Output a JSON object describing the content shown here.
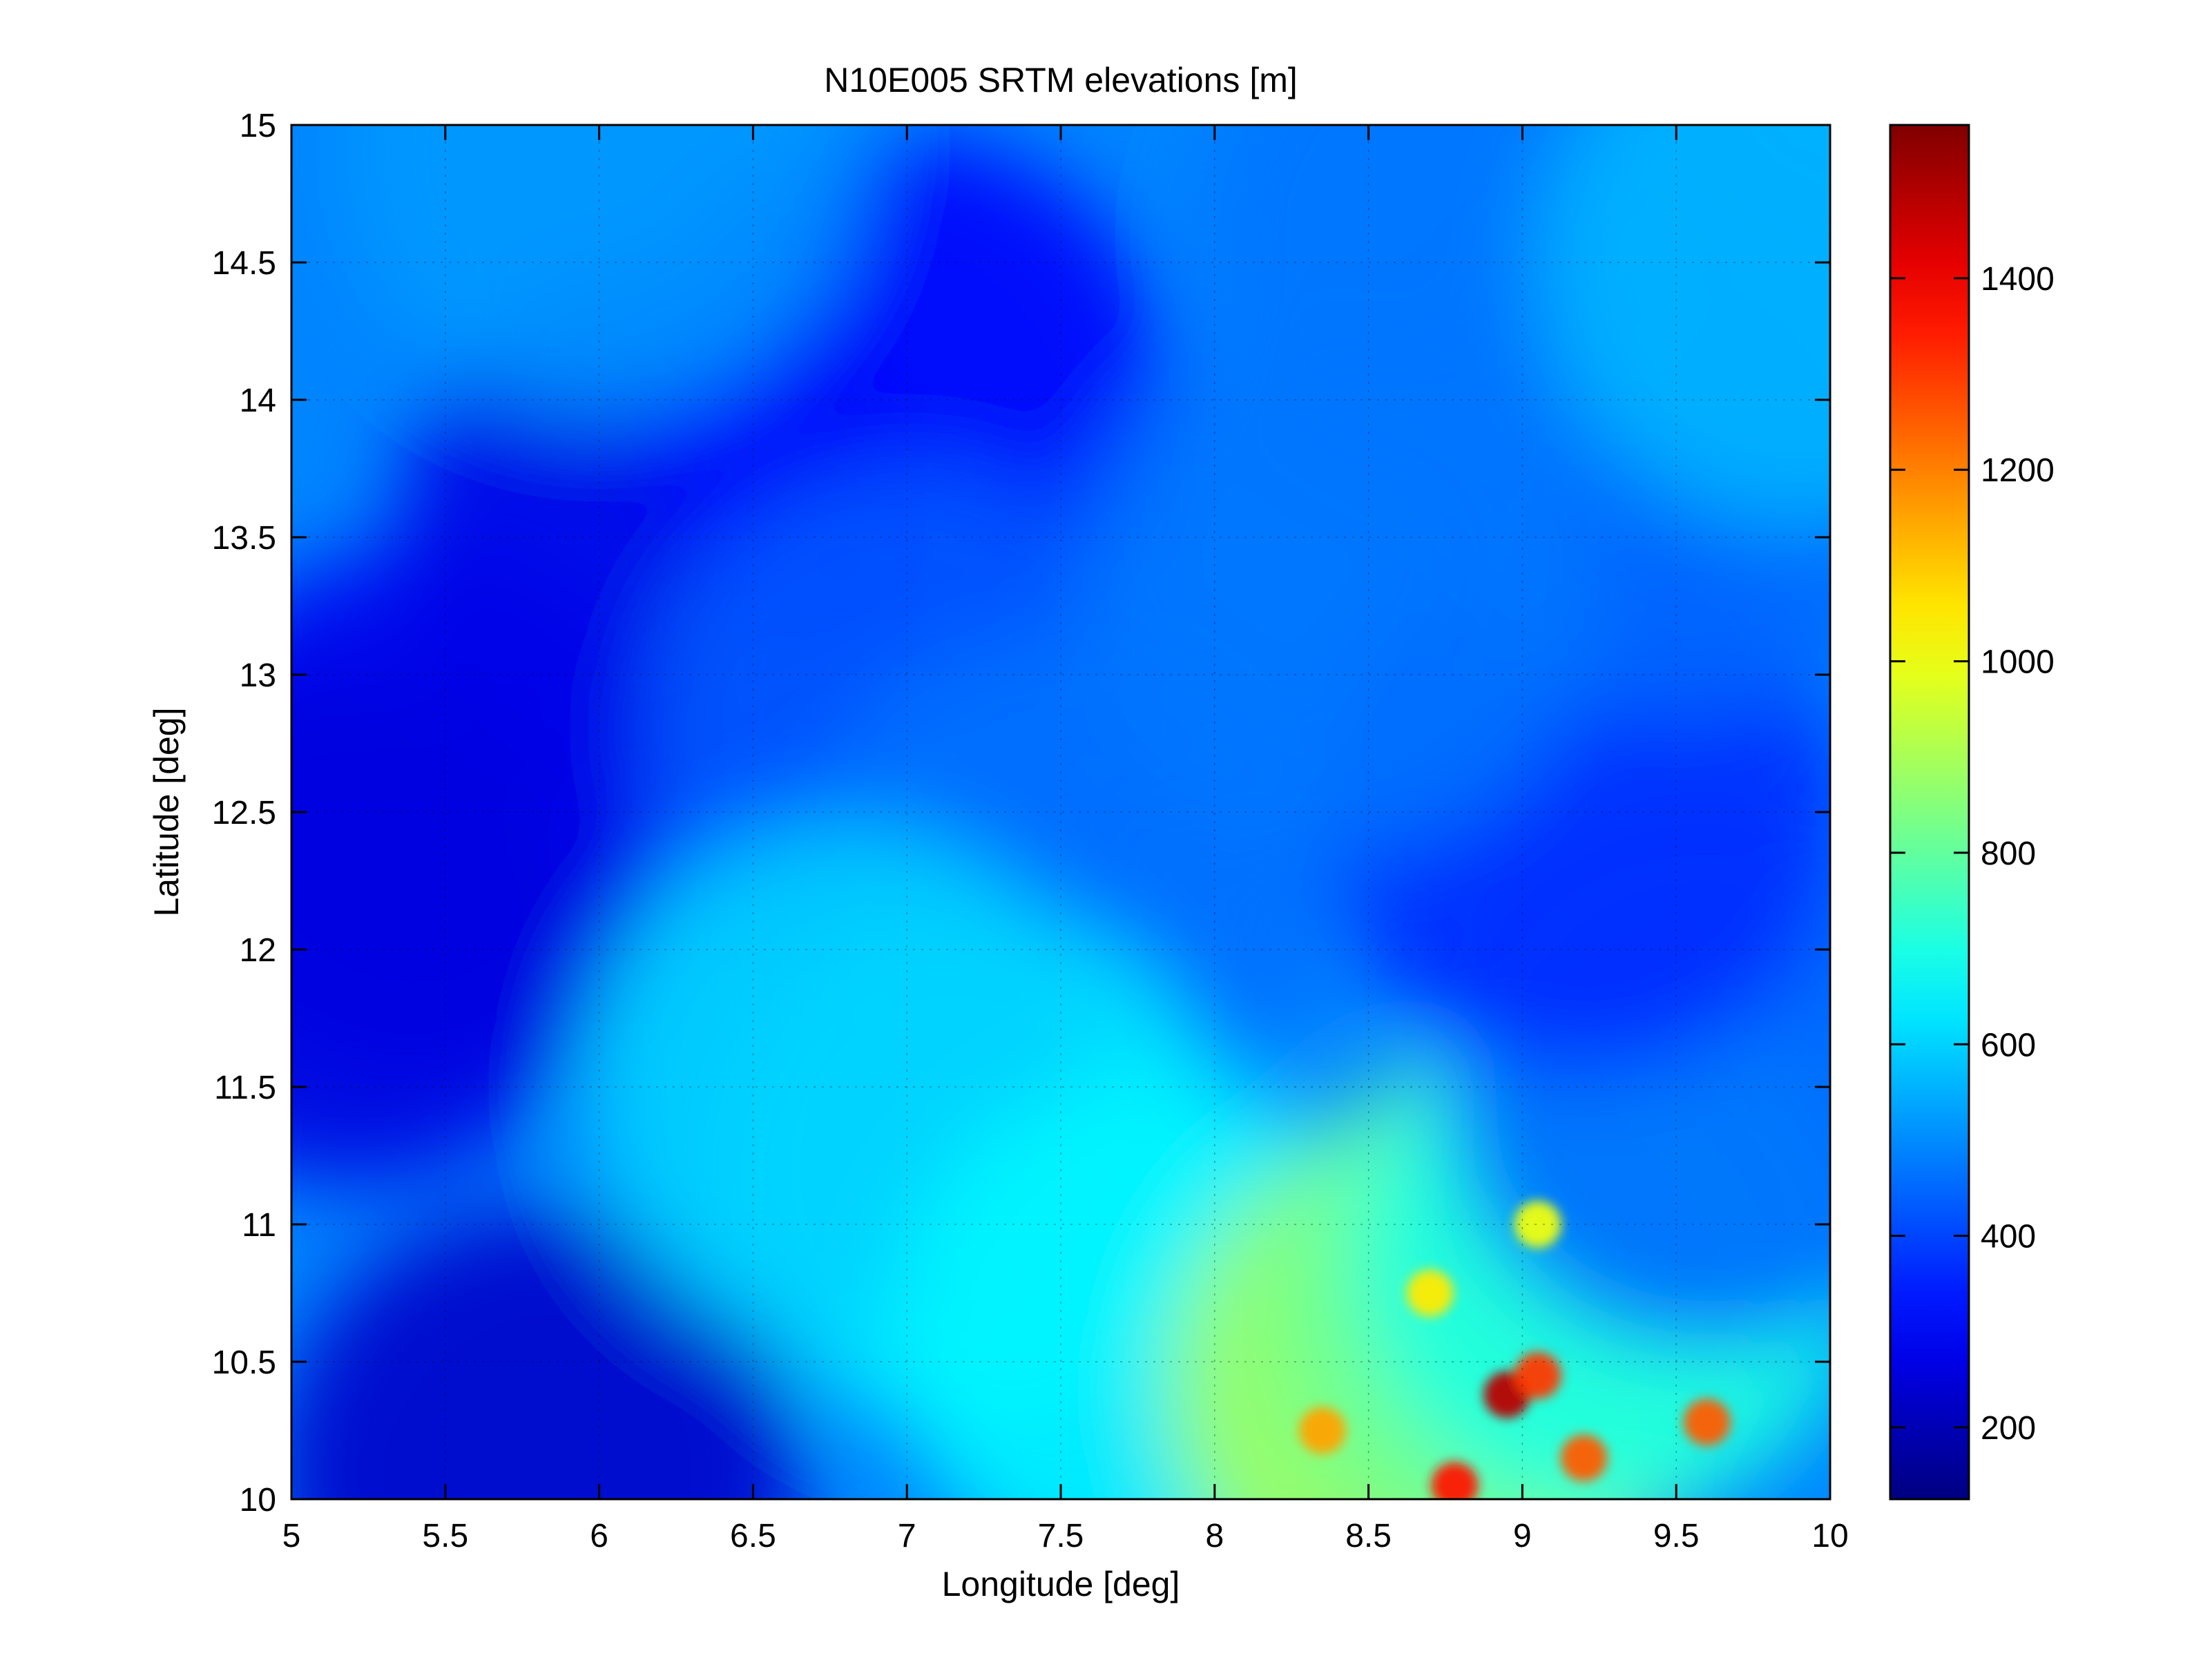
{
  "chart_data": {
    "type": "heatmap",
    "title": "N10E005 SRTM elevations [m]",
    "xlabel": "Longitude [deg]",
    "ylabel": "Latitude [deg]",
    "xlim": [
      5,
      10
    ],
    "ylim": [
      10,
      15
    ],
    "x_ticks": [
      "5",
      "5.5",
      "6",
      "6.5",
      "7",
      "7.5",
      "8",
      "8.5",
      "9",
      "9.5",
      "10"
    ],
    "y_ticks": [
      "10",
      "10.5",
      "11",
      "11.5",
      "12",
      "12.5",
      "13",
      "13.5",
      "14",
      "14.5",
      "15"
    ],
    "grid": true,
    "colormap": "jet",
    "colorbar": {
      "range": [
        125,
        1560
      ],
      "ticks": [
        "200",
        "400",
        "600",
        "800",
        "1000",
        "1200",
        "1400"
      ]
    },
    "regions": [
      {
        "lon": 5.4,
        "lat": 12.5,
        "elev": 280
      },
      {
        "lon": 5.2,
        "lat": 12.1,
        "elev": 260
      },
      {
        "lon": 6.2,
        "lat": 13.5,
        "elev": 270
      },
      {
        "lon": 7.0,
        "lat": 14.0,
        "elev": 300
      },
      {
        "lon": 5.8,
        "lat": 10.1,
        "elev": 230
      },
      {
        "lon": 6.0,
        "lat": 14.9,
        "elev": 520
      },
      {
        "lon": 7.0,
        "lat": 12.8,
        "elev": 430
      },
      {
        "lon": 7.5,
        "lat": 12.2,
        "elev": 460
      },
      {
        "lon": 7.2,
        "lat": 11.2,
        "elev": 640
      },
      {
        "lon": 6.8,
        "lat": 11.5,
        "elev": 600
      },
      {
        "lon": 7.8,
        "lat": 10.6,
        "elev": 650
      },
      {
        "lon": 8.7,
        "lat": 10.4,
        "elev": 900
      },
      {
        "lon": 9.0,
        "lat": 10.7,
        "elev": 820
      },
      {
        "lon": 9.3,
        "lat": 10.9,
        "elev": 700
      },
      {
        "lon": 9.6,
        "lat": 11.5,
        "elev": 450
      },
      {
        "lon": 9.2,
        "lat": 12.5,
        "elev": 360
      },
      {
        "lon": 9.5,
        "lat": 13.8,
        "elev": 450
      },
      {
        "lon": 8.8,
        "lat": 14.6,
        "elev": 470
      },
      {
        "lon": 9.9,
        "lat": 14.5,
        "elev": 560
      },
      {
        "lon": 8.4,
        "lat": 13.3,
        "elev": 470
      }
    ],
    "peaks": [
      {
        "lon": 8.78,
        "lat": 10.05,
        "elev": 1350
      },
      {
        "lon": 8.95,
        "lat": 10.38,
        "elev": 1480
      },
      {
        "lon": 9.05,
        "lat": 10.45,
        "elev": 1300
      },
      {
        "lon": 9.2,
        "lat": 10.15,
        "elev": 1250
      },
      {
        "lon": 9.6,
        "lat": 10.28,
        "elev": 1250
      },
      {
        "lon": 8.35,
        "lat": 10.25,
        "elev": 1150
      },
      {
        "lon": 8.7,
        "lat": 10.75,
        "elev": 1050
      },
      {
        "lon": 9.05,
        "lat": 11.0,
        "elev": 1000
      }
    ]
  }
}
